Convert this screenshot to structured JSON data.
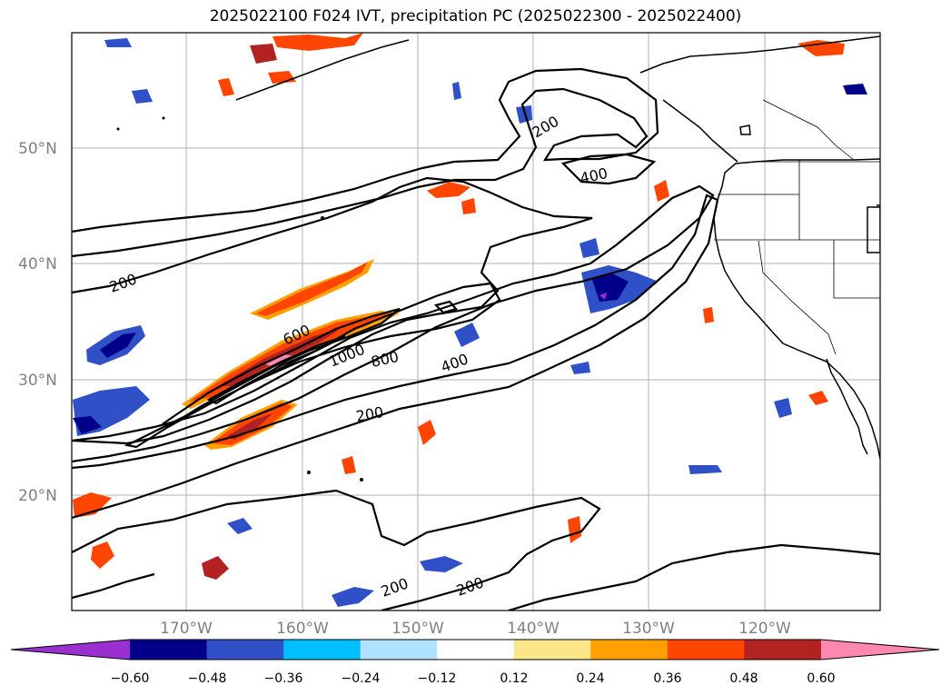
{
  "title": "2025022100 F024 IVT, precipitation PC (2025022300 - 2025022400)",
  "map": {
    "lat_labels": [
      "50°N",
      "40°N",
      "30°N",
      "20°N"
    ],
    "lon_labels": [
      "170°W",
      "160°W",
      "150°W",
      "140°W",
      "130°W",
      "120°W"
    ]
  },
  "contour_labels": [
    "200",
    "400",
    "200",
    "600",
    "1000",
    "800",
    "400",
    "200",
    "200",
    "200"
  ],
  "colorbar": {
    "ticks": [
      "−0.60",
      "−0.48",
      "−0.36",
      "−0.24",
      "−0.12",
      "0.12",
      "0.24",
      "0.36",
      "0.48",
      "0.60"
    ],
    "colors": [
      "#9b30d0",
      "#00008b",
      "#3050c8",
      "#00bfff",
      "#b0e2ff",
      "#ffffff",
      "#fde68a",
      "#ff9f00",
      "#ff4500",
      "#b22222",
      "#ff88b0"
    ]
  }
}
